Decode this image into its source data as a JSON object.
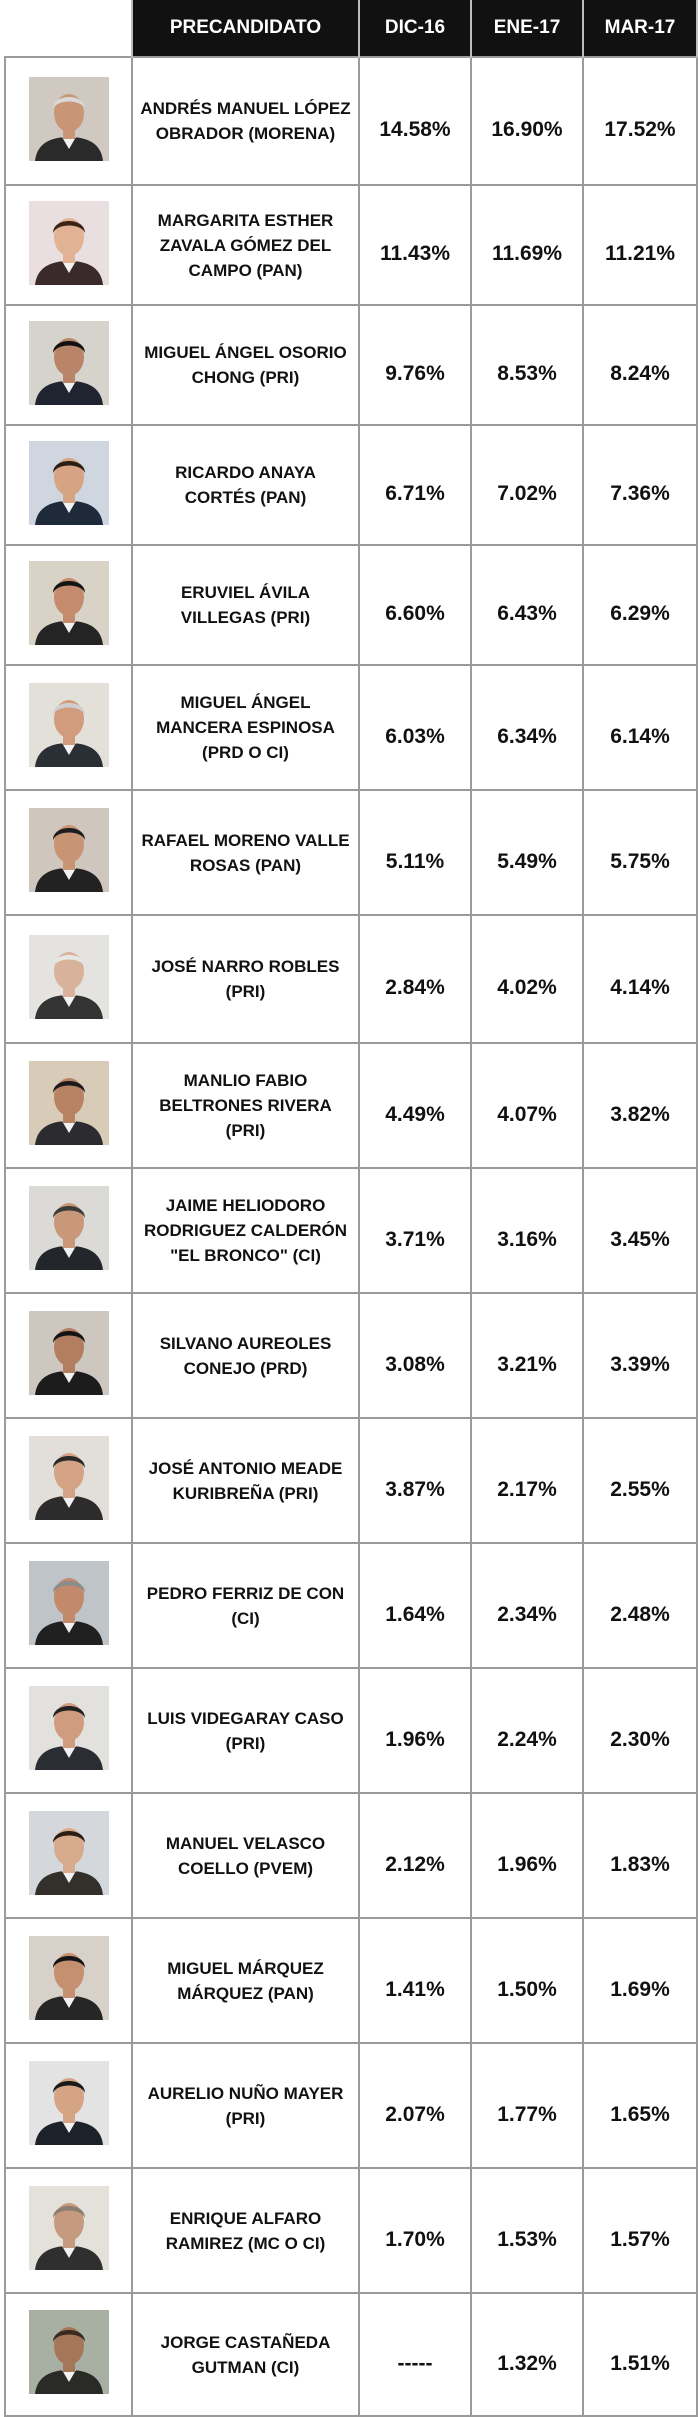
{
  "chart_data": {
    "type": "table",
    "columns": [
      "PRECANDIDATO",
      "DIC-16",
      "ENE-17",
      "MAR-17"
    ],
    "rows": [
      {
        "name": "ANDRÉS MANUEL LÓPEZ OBRADOR (MORENA)",
        "dic16": "14.58%",
        "ene17": "16.90%",
        "mar17": "17.52%"
      },
      {
        "name": "MARGARITA ESTHER ZAVALA GÓMEZ DEL CAMPO (PAN)",
        "dic16": "11.43%",
        "ene17": "11.69%",
        "mar17": "11.21%"
      },
      {
        "name": "MIGUEL ÁNGEL OSORIO CHONG (PRI)",
        "dic16": "9.76%",
        "ene17": "8.53%",
        "mar17": "8.24%"
      },
      {
        "name": "RICARDO ANAYA CORTÉS (PAN)",
        "dic16": "6.71%",
        "ene17": "7.02%",
        "mar17": "7.36%"
      },
      {
        "name": "ERUVIEL ÁVILA VILLEGAS (PRI)",
        "dic16": "6.60%",
        "ene17": "6.43%",
        "mar17": "6.29%"
      },
      {
        "name": "MIGUEL ÁNGEL MANCERA ESPINOSA (PRD O CI)",
        "dic16": "6.03%",
        "ene17": "6.34%",
        "mar17": "6.14%"
      },
      {
        "name": "RAFAEL MORENO VALLE ROSAS (PAN)",
        "dic16": "5.11%",
        "ene17": "5.49%",
        "mar17": "5.75%"
      },
      {
        "name": "JOSÉ NARRO ROBLES (PRI)",
        "dic16": "2.84%",
        "ene17": "4.02%",
        "mar17": "4.14%"
      },
      {
        "name": "MANLIO FABIO BELTRONES RIVERA (PRI)",
        "dic16": "4.49%",
        "ene17": "4.07%",
        "mar17": "3.82%"
      },
      {
        "name": "JAIME HELIODORO RODRIGUEZ CALDERÓN \"EL BRONCO\" (CI)",
        "dic16": "3.71%",
        "ene17": "3.16%",
        "mar17": "3.45%"
      },
      {
        "name": "SILVANO AUREOLES CONEJO (PRD)",
        "dic16": "3.08%",
        "ene17": "3.21%",
        "mar17": "3.39%"
      },
      {
        "name": "JOSÉ ANTONIO MEADE KURIBREÑA (PRI)",
        "dic16": "3.87%",
        "ene17": "2.17%",
        "mar17": "2.55%"
      },
      {
        "name": "PEDRO FERRIZ DE CON (CI)",
        "dic16": "1.64%",
        "ene17": "2.34%",
        "mar17": "2.48%"
      },
      {
        "name": "LUIS VIDEGARAY CASO (PRI)",
        "dic16": "1.96%",
        "ene17": "2.24%",
        "mar17": "2.30%"
      },
      {
        "name": "MANUEL VELASCO COELLO (PVEM)",
        "dic16": "2.12%",
        "ene17": "1.96%",
        "mar17": "1.83%"
      },
      {
        "name": "MIGUEL MÁRQUEZ MÁRQUEZ (PAN)",
        "dic16": "1.41%",
        "ene17": "1.50%",
        "mar17": "1.69%"
      },
      {
        "name": "AURELIO NUÑO MAYER (PRI)",
        "dic16": "2.07%",
        "ene17": "1.77%",
        "mar17": "1.65%"
      },
      {
        "name": "ENRIQUE ALFARO RAMIREZ (MC O CI)",
        "dic16": "1.70%",
        "ene17": "1.53%",
        "mar17": "1.57%"
      },
      {
        "name": "JORGE CASTAÑEDA GUTMAN (CI)",
        "dic16": "-----",
        "ene17": "1.32%",
        "mar17": "1.51%"
      }
    ]
  },
  "photo_icon": "candidate-portrait-icon",
  "colors": {
    "header_bg": "#111111",
    "header_text": "#ffffff",
    "grid": "#9a9a9a"
  }
}
